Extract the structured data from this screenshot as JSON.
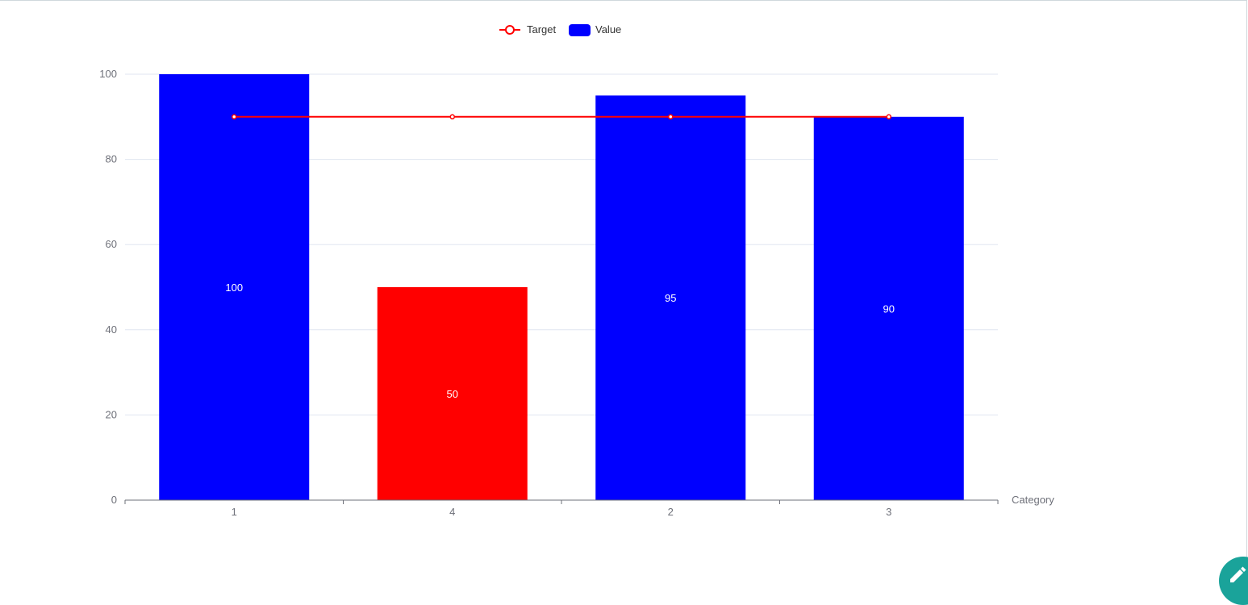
{
  "chart_data": {
    "type": "bar",
    "categories": [
      "1",
      "4",
      "2",
      "3"
    ],
    "series": [
      {
        "name": "Value",
        "type": "bar",
        "values": [
          100,
          50,
          95,
          90
        ],
        "colors": [
          "#0000ff",
          "#ff0000",
          "#0000ff",
          "#0000ff"
        ]
      },
      {
        "name": "Target",
        "type": "line",
        "values": [
          90,
          90,
          90,
          90
        ],
        "color": "#ff0000"
      }
    ],
    "xlabel": "Category",
    "ylabel": "",
    "ylim": [
      0,
      100
    ],
    "yticks": [
      0,
      20,
      40,
      60,
      80,
      100
    ],
    "grid": true,
    "legend": "top-center",
    "data_labels": true
  },
  "legend": {
    "target_label": "Target",
    "value_label": "Value"
  },
  "colors": {
    "bar_default": "#0000ff",
    "bar_highlight": "#ff0000",
    "target_line": "#ff0000",
    "grid": "#e0e6f1",
    "axis": "#6e7079"
  },
  "fab": {
    "icon": "pencil-icon",
    "color": "#1aa39a"
  }
}
